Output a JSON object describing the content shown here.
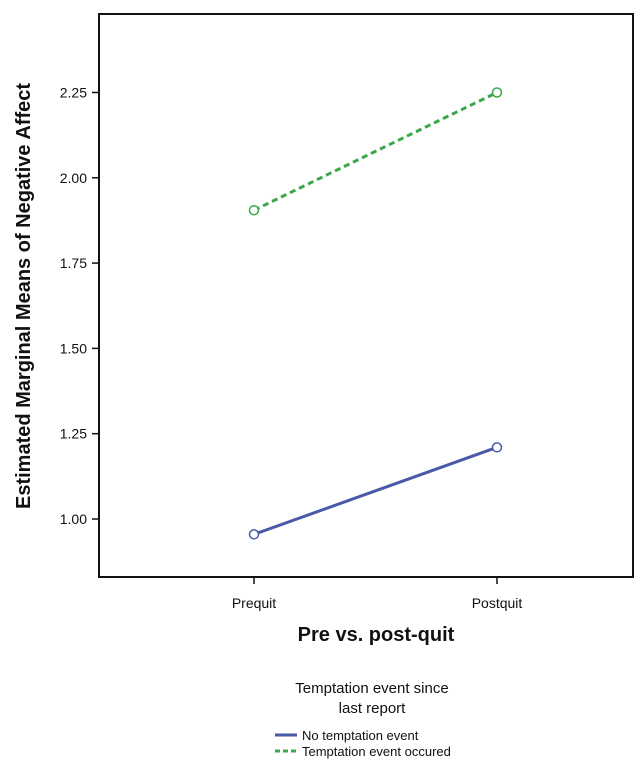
{
  "chart_data": {
    "type": "line",
    "title": "",
    "xlabel": "Pre vs. post-quit",
    "ylabel": "Estimated Marginal Means of Negative Affect",
    "categories": [
      "Prequit",
      "Postquit"
    ],
    "ylim": [
      0.83,
      2.48
    ],
    "yticks": [
      1.0,
      1.25,
      1.5,
      1.75,
      2.0,
      2.25
    ],
    "ytick_labels": [
      "1.00",
      "1.25",
      "1.50",
      "1.75",
      "2.00",
      "2.25"
    ],
    "grid": false,
    "legend": {
      "title_line1": "Temptation event since",
      "title_line2": "last report",
      "placement": "bottom"
    },
    "series": [
      {
        "name": "No temptation event",
        "values": [
          0.955,
          1.21
        ],
        "color": "#4a5aa8",
        "style": "solid",
        "marker": "open-circle"
      },
      {
        "name": "Temptation event occured",
        "values": [
          1.905,
          2.25
        ],
        "color": "#3aa84a",
        "style": "dashed",
        "marker": "open-circle"
      }
    ]
  }
}
